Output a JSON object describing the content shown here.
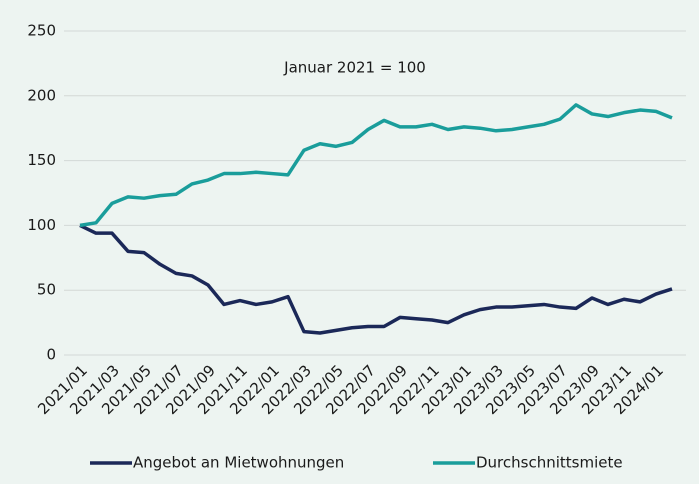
{
  "chart_data": {
    "type": "line",
    "annotation": "Januar 2021 = 100",
    "categories": [
      "2021/01",
      null,
      "2021/03",
      null,
      "2021/05",
      null,
      "2021/07",
      null,
      "2021/09",
      null,
      "2021/11",
      null,
      "2022/01",
      null,
      "2022/03",
      null,
      "2022/05",
      null,
      "2022/07",
      null,
      "2022/09",
      null,
      "2022/11",
      null,
      "2023/01",
      null,
      "2023/03",
      null,
      "2023/05",
      null,
      "2023/07",
      null,
      "2023/09",
      null,
      "2023/11",
      null,
      "2024/01",
      null
    ],
    "series": [
      {
        "name": "Angebot an Mietwohnungen",
        "color": "#1b2858",
        "values": [
          100,
          94,
          94,
          80,
          79,
          70,
          63,
          61,
          54,
          39,
          42,
          39,
          41,
          45,
          18,
          17,
          19,
          21,
          22,
          22,
          29,
          28,
          27,
          25,
          31,
          35,
          37,
          37,
          38,
          39,
          37,
          36,
          44,
          39,
          43,
          41,
          47,
          51
        ]
      },
      {
        "name": "Durchschnittsmiete",
        "color": "#1a9d9b",
        "values": [
          100,
          102,
          117,
          122,
          121,
          123,
          124,
          132,
          135,
          140,
          140,
          141,
          140,
          139,
          158,
          163,
          161,
          164,
          174,
          181,
          176,
          176,
          178,
          174,
          176,
          175,
          173,
          174,
          176,
          178,
          182,
          193,
          186,
          184,
          187,
          189,
          188,
          183
        ]
      }
    ],
    "ylim": [
      0,
      250
    ],
    "yticks": [
      0,
      50,
      100,
      150,
      200,
      250
    ],
    "grid": true
  }
}
